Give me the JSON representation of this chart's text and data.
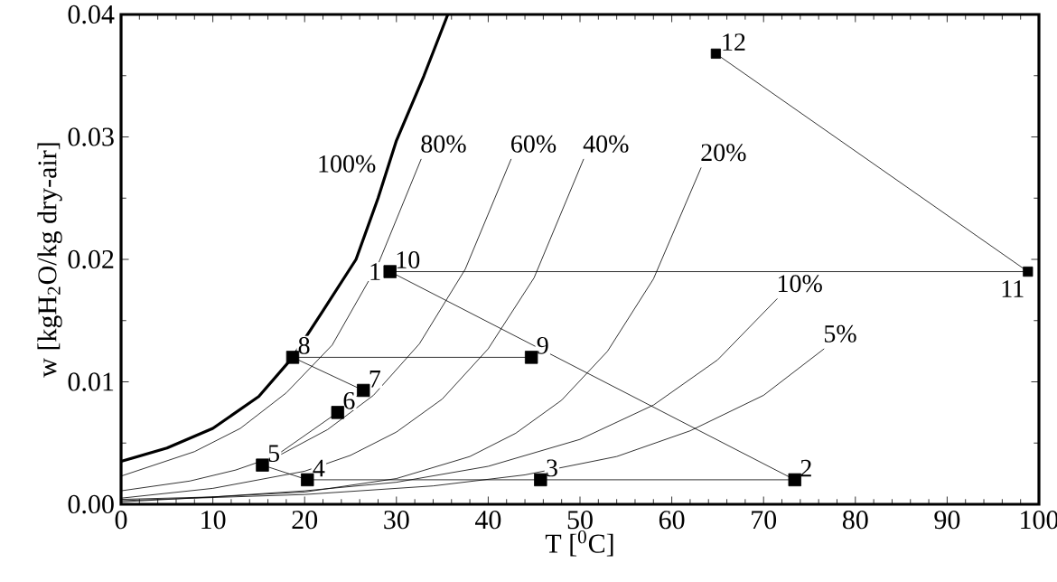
{
  "chart_data": {
    "type": "line",
    "xlabel": "T [$^{0}$C]",
    "ylabel": "w [kgH$_{2}$O/kg dry-air]",
    "xlim": [
      0,
      100
    ],
    "ylim": [
      0,
      0.04
    ],
    "xticks": [
      0,
      10,
      20,
      30,
      40,
      50,
      60,
      70,
      80,
      90,
      100
    ],
    "yticks": [
      {
        "value": 0,
        "label": "0.00"
      },
      {
        "value": 0.01,
        "label": "0.01"
      },
      {
        "value": 0.02,
        "label": "0.02"
      },
      {
        "value": 0.03,
        "label": "0.03"
      },
      {
        "value": 0.04,
        "label": "0.04"
      }
    ],
    "grid": false,
    "series": [
      {
        "name": "100%",
        "color": "#000000",
        "marker": "none",
        "x": [
          0,
          5,
          10,
          15,
          18.7,
          22,
          25.6,
          28,
          30,
          33,
          35.6
        ],
        "values": [
          0.0035,
          0.0046,
          0.0062,
          0.0088,
          0.012,
          0.0158,
          0.02,
          0.025,
          0.0297,
          0.035,
          0.04
        ]
      },
      {
        "name": "80%",
        "color": "#000000",
        "marker": "none",
        "x": [
          0,
          8,
          13,
          18,
          23,
          28,
          32.7
        ],
        "values": [
          0.0023,
          0.0043,
          0.0062,
          0.0091,
          0.013,
          0.0196,
          0.0282
        ]
      },
      {
        "name": "60%",
        "color": "#000000",
        "marker": "none",
        "x": [
          0,
          7.5,
          12.5,
          17.5,
          22.5,
          27.5,
          32.5,
          37.5,
          42.5
        ],
        "values": [
          0.0011,
          0.0019,
          0.0028,
          0.0041,
          0.0061,
          0.0089,
          0.0131,
          0.0192,
          0.0282
        ]
      },
      {
        "name": "40%",
        "color": "#000000",
        "marker": "none",
        "x": [
          0,
          10,
          20,
          25,
          30,
          35,
          40,
          45,
          50.4
        ],
        "values": [
          0.0005,
          0.0013,
          0.0027,
          0.004,
          0.0059,
          0.0086,
          0.0127,
          0.0185,
          0.0282
        ]
      },
      {
        "name": "20%",
        "color": "#000000",
        "marker": "none",
        "x": [
          0,
          20,
          30,
          38,
          43,
          48,
          53,
          58,
          63.2
        ],
        "values": [
          0.0002,
          0.001,
          0.0021,
          0.0039,
          0.0058,
          0.0085,
          0.0125,
          0.0184,
          0.0275
        ]
      },
      {
        "name": "10%",
        "color": "#000000",
        "marker": "none",
        "x": [
          0,
          10,
          20,
          30,
          40,
          50,
          58,
          65,
          71.5
        ],
        "values": [
          0.0004,
          0.0006,
          0.0011,
          0.0018,
          0.0031,
          0.0053,
          0.0081,
          0.0118,
          0.0168
        ]
      },
      {
        "name": "5%",
        "color": "#000000",
        "marker": "none",
        "x": [
          0,
          20,
          34,
          44,
          54,
          62,
          70,
          76.6
        ],
        "values": [
          0.0003,
          0.0008,
          0.0015,
          0.0024,
          0.0039,
          0.006,
          0.0089,
          0.0127
        ]
      },
      {
        "color": "#000000",
        "marker": "square",
        "x": [
          29.3,
          73.4,
          45.7,
          20.3,
          15.4,
          23.6,
          26.4,
          18.7,
          44.7
        ],
        "values": [
          0.019,
          0.002,
          0.002,
          0.002,
          0.0032,
          0.0075,
          0.0093,
          0.012,
          0.012
        ]
      },
      {
        "color": "#000000",
        "marker": "square",
        "x": [
          29.3,
          98.8,
          64.8
        ],
        "values": [
          0.019,
          0.019,
          0.0368
        ]
      }
    ],
    "annotations": [
      {
        "text": "1",
        "x": 29.3,
        "y": 0.019
      },
      {
        "text": "2",
        "x": 73.4,
        "y": 0.002
      },
      {
        "text": "3",
        "x": 45.7,
        "y": 0.002
      },
      {
        "text": "4",
        "x": 20.3,
        "y": 0.002
      },
      {
        "text": "5",
        "x": 15.4,
        "y": 0.0032
      },
      {
        "text": "6",
        "x": 23.6,
        "y": 0.0075
      },
      {
        "text": "7",
        "x": 26.4,
        "y": 0.0093
      },
      {
        "text": "8",
        "x": 18.7,
        "y": 0.012
      },
      {
        "text": "9",
        "x": 44.7,
        "y": 0.012
      },
      {
        "text": "10",
        "x": 29.3,
        "y": 0.019
      },
      {
        "text": "11",
        "x": 98.8,
        "y": 0.019
      },
      {
        "text": "12",
        "x": 64.8,
        "y": 0.0368
      }
    ]
  }
}
